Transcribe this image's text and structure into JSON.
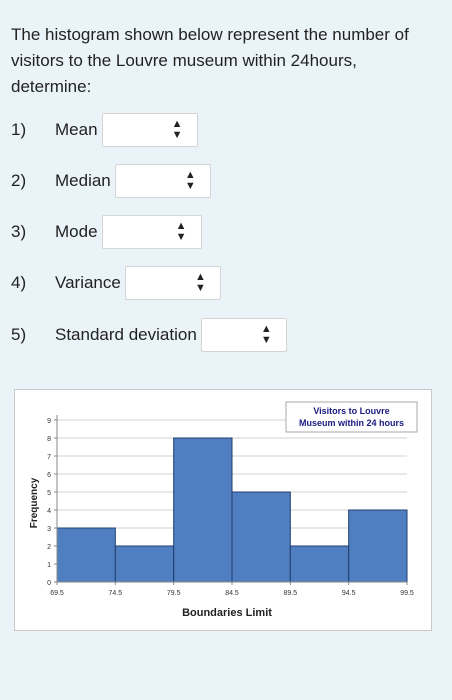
{
  "question": {
    "text": "The histogram shown below represent the number of visitors to the Louvre museum within 24hours, determine:"
  },
  "items": [
    {
      "num": "1)",
      "label": "Mean",
      "value": ""
    },
    {
      "num": "2)",
      "label": "Median",
      "value": ""
    },
    {
      "num": "3)",
      "label": "Mode",
      "value": ""
    },
    {
      "num": "4)",
      "label": "Variance",
      "value": ""
    },
    {
      "num": "5)",
      "label": "Standard deviation",
      "value": ""
    }
  ],
  "icons": {
    "select_arrows": "up-down-arrows-icon"
  },
  "chart_data": {
    "type": "bar",
    "title": "",
    "legend": "Visitors to Louvre Museum within 24 hours",
    "legend_placement": "top-right",
    "xlabel": "Boundaries Limit",
    "ylabel": "Frequency",
    "x_ticks": [
      "69.5",
      "74.5",
      "79.5",
      "84.5",
      "89.5",
      "94.5",
      "99.5"
    ],
    "bins": [
      [
        69.5,
        74.5
      ],
      [
        74.5,
        79.5
      ],
      [
        79.5,
        84.5
      ],
      [
        84.5,
        89.5
      ],
      [
        89.5,
        94.5
      ],
      [
        94.5,
        99.5
      ]
    ],
    "values": [
      3,
      2,
      8,
      5,
      2,
      4
    ],
    "y_ticks": [
      "0",
      "1",
      "2",
      "3",
      "4",
      "5",
      "6",
      "7",
      "8",
      "9"
    ],
    "ylim": [
      0,
      9
    ],
    "grid": true,
    "bar_color": "#4f7fc1",
    "bar_edge_color": "#203f6e"
  }
}
